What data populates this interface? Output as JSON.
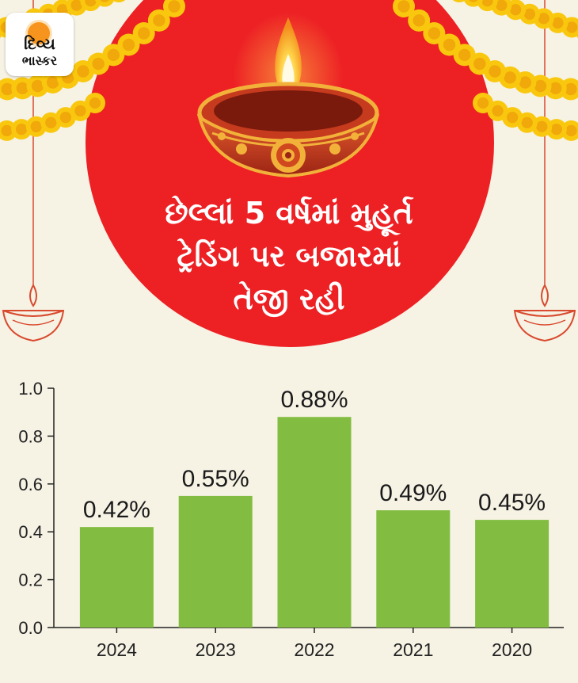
{
  "brand": {
    "line1": "દિવ્ય",
    "line2": "ભાસ્કર"
  },
  "headline": {
    "line1": "છેલ્લાં 5 વર્ષમાં મુહૂર્ત",
    "line2": "ટ્રેડિંગ પર બજારમાં",
    "line3": "તેજી રહી"
  },
  "colors": {
    "background": "#f6f2e4",
    "circle": "#ed2024",
    "bar": "#82bc40",
    "marigold": "#f9c80e",
    "diya": "#d74a2a"
  },
  "icons": [
    "diya-lamp-icon",
    "marigold-garland-icon",
    "hanging-lamp-icon"
  ],
  "chart_data": {
    "type": "bar",
    "categories": [
      "2024",
      "2023",
      "2022",
      "2021",
      "2020"
    ],
    "values": [
      0.42,
      0.55,
      0.88,
      0.49,
      0.45
    ],
    "data_labels": [
      "0.42%",
      "0.55%",
      "0.88%",
      "0.49%",
      "0.45%"
    ],
    "ylim": [
      0,
      1.0
    ],
    "yticks": [
      "0.0",
      "0.2",
      "0.4",
      "0.6",
      "0.8",
      "1.0"
    ],
    "ytick_values": [
      0.0,
      0.2,
      0.4,
      0.6,
      0.8,
      1.0
    ],
    "grid": false,
    "title": "",
    "xlabel": "",
    "ylabel": ""
  }
}
